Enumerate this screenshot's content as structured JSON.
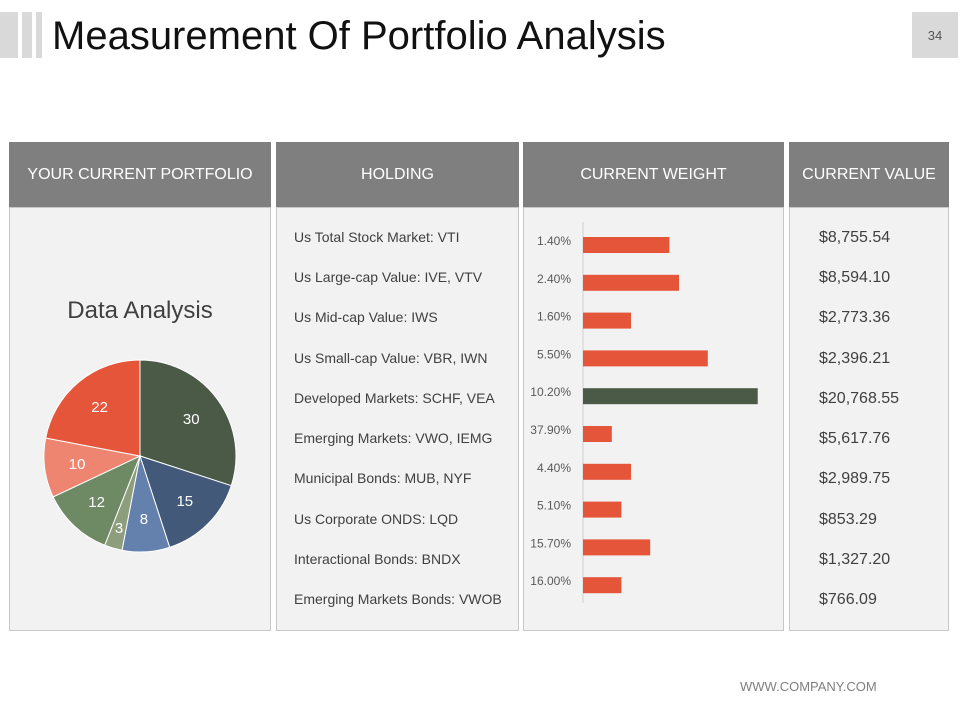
{
  "header": {
    "title": "Measurement Of Portfolio Analysis",
    "page_number": "34"
  },
  "columns": {
    "portfolio": "YOUR CURRENT PORTFOLIO",
    "holding": "HOLDING",
    "weight": "CURRENT WEIGHT",
    "value": "CURRENT VALUE"
  },
  "footer": {
    "website": "WWW.COMPANY.COM"
  },
  "holdings": [
    "Us Total Stock Market: VTI",
    "Us Large-cap Value: IVE, VTV",
    "Us Mid-cap Value: IWS",
    "Us Small-cap Value: VBR, IWN",
    "Developed Markets: SCHF, VEA",
    "Emerging Markets: VWO, IEMG",
    "Municipal Bonds: MUB, NYF",
    "Us Corporate ONDS: LQD",
    "Interactional Bonds: BNDX",
    "Emerging Markets Bonds: VWOB"
  ],
  "values": [
    "$8,755.54",
    "$8,594.10",
    "$2,773.36",
    "$2,396.21",
    "$20,768.55",
    "$5,617.76",
    "$2,989.75",
    "$853.29",
    "$1,327.20",
    "$766.09"
  ],
  "colors": {
    "bar": "#e4553a",
    "bar_highlight": "#4b5a47",
    "pie": [
      "#4b5a47",
      "#43597a",
      "#6480ad",
      "#8c9e7c",
      "#6e8a64",
      "#ee8570",
      "#e4553a"
    ]
  },
  "chart_data": [
    {
      "type": "pie",
      "title": "Data Analysis",
      "values": [
        30,
        15,
        8,
        3,
        12,
        10,
        22
      ]
    },
    {
      "type": "bar",
      "orientation": "horizontal",
      "categories": [
        "1.40%",
        "2.40%",
        "1.60%",
        "5.50%",
        "10.20%",
        "37.90%",
        "4.40%",
        "5.10%",
        "15.70%",
        "16.00%"
      ],
      "values": [
        4.5,
        5.0,
        2.5,
        6.5,
        9.1,
        1.5,
        2.5,
        2.0,
        3.5,
        2.0
      ],
      "highlight_index": 4,
      "xlim": [
        0,
        10
      ]
    }
  ]
}
